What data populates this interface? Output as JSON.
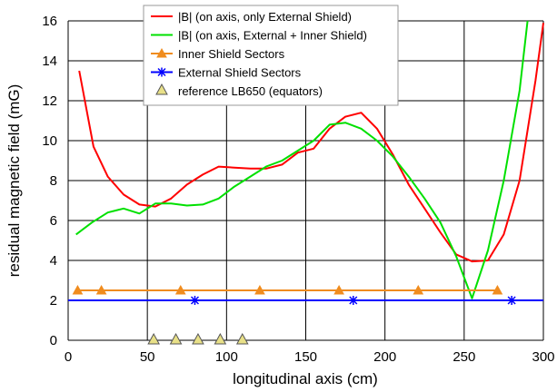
{
  "chart_data": {
    "type": "line",
    "xlabel": "longitudinal axis (cm)",
    "ylabel": "residual magnetic field (mG)",
    "xlim": [
      0,
      300
    ],
    "ylim": [
      0,
      16
    ],
    "xticks": [
      0,
      50,
      100,
      150,
      200,
      250,
      300
    ],
    "yticks": [
      0,
      2,
      4,
      6,
      8,
      10,
      12,
      14,
      16
    ],
    "grid": true,
    "legend_position": "top-center",
    "series": [
      {
        "name": "|B| (on axis, only External Shield)",
        "color": "#ff0000",
        "marker": "none",
        "points": [
          [
            7,
            13.5
          ],
          [
            16,
            9.7
          ],
          [
            25,
            8.2
          ],
          [
            35,
            7.3
          ],
          [
            45,
            6.8
          ],
          [
            55,
            6.7
          ],
          [
            65,
            7.1
          ],
          [
            75,
            7.8
          ],
          [
            85,
            8.3
          ],
          [
            95,
            8.7
          ],
          [
            105,
            8.65
          ],
          [
            115,
            8.6
          ],
          [
            125,
            8.6
          ],
          [
            135,
            8.8
          ],
          [
            145,
            9.4
          ],
          [
            155,
            9.6
          ],
          [
            165,
            10.6
          ],
          [
            175,
            11.2
          ],
          [
            185,
            11.4
          ],
          [
            195,
            10.6
          ],
          [
            205,
            9.3
          ],
          [
            215,
            7.8
          ],
          [
            225,
            6.6
          ],
          [
            235,
            5.4
          ],
          [
            245,
            4.3
          ],
          [
            255,
            3.95
          ],
          [
            265,
            4.0
          ],
          [
            275,
            5.3
          ],
          [
            285,
            8.0
          ],
          [
            295,
            13.0
          ],
          [
            300,
            15.9
          ]
        ]
      },
      {
        "name": "|B| (on axis, External + Inner Shield)",
        "color": "#00e000",
        "marker": "none",
        "points": [
          [
            5,
            5.3
          ],
          [
            15,
            5.9
          ],
          [
            25,
            6.4
          ],
          [
            35,
            6.6
          ],
          [
            45,
            6.35
          ],
          [
            55,
            6.85
          ],
          [
            65,
            6.85
          ],
          [
            75,
            6.75
          ],
          [
            85,
            6.8
          ],
          [
            95,
            7.1
          ],
          [
            105,
            7.7
          ],
          [
            115,
            8.2
          ],
          [
            125,
            8.7
          ],
          [
            135,
            9.0
          ],
          [
            145,
            9.5
          ],
          [
            155,
            10.0
          ],
          [
            165,
            10.8
          ],
          [
            175,
            10.9
          ],
          [
            185,
            10.6
          ],
          [
            195,
            10.0
          ],
          [
            205,
            9.2
          ],
          [
            215,
            8.2
          ],
          [
            225,
            7.1
          ],
          [
            235,
            5.9
          ],
          [
            245,
            4.2
          ],
          [
            255,
            2.1
          ],
          [
            265,
            4.5
          ],
          [
            275,
            8.0
          ],
          [
            285,
            12.5
          ],
          [
            290,
            16.0
          ]
        ]
      },
      {
        "name": "Inner Shield Sectors",
        "color": "#f08c1e",
        "marker": "triangle",
        "points": [
          [
            6,
            2.5
          ],
          [
            21,
            2.5
          ],
          [
            71,
            2.5
          ],
          [
            121,
            2.5
          ],
          [
            171,
            2.5
          ],
          [
            221,
            2.5
          ],
          [
            271,
            2.5
          ]
        ]
      },
      {
        "name": "External Shield Sectors",
        "color": "#0000ff",
        "marker": "star",
        "points": [
          [
            0,
            2.0
          ],
          [
            80,
            2.0
          ],
          [
            180,
            2.0
          ],
          [
            280,
            2.0
          ],
          [
            300,
            2.0
          ]
        ]
      },
      {
        "name": "reference LB650 (equators)",
        "color": "#e8e088",
        "marker": "triangle-outline",
        "points": [
          [
            54,
            0.0
          ],
          [
            68,
            0.0
          ],
          [
            82,
            0.0
          ],
          [
            96,
            0.0
          ],
          [
            110,
            0.0
          ]
        ]
      }
    ]
  }
}
